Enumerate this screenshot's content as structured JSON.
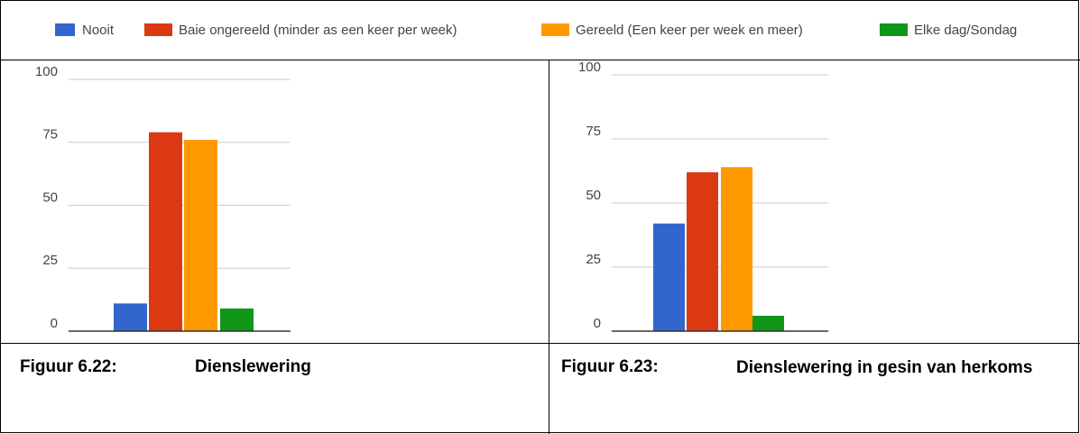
{
  "legend": {
    "items": [
      {
        "name": "Nooit",
        "color": "#3366cc"
      },
      {
        "name": "Baie ongereeld (minder as een keer per week)",
        "color": "#dc3912"
      },
      {
        "name": "Gereeld (Een keer per week en meer)",
        "color": "#ff9900"
      },
      {
        "name": "Elke dag/Sondag",
        "color": "#109618"
      }
    ]
  },
  "chart_data": [
    {
      "type": "bar",
      "values": [
        11,
        79,
        76,
        9
      ],
      "ylim": [
        0,
        100
      ],
      "yticks": [
        0,
        25,
        50,
        75,
        100
      ],
      "grid": true
    },
    {
      "type": "bar",
      "values": [
        42,
        62,
        64,
        6
      ],
      "ylim": [
        0,
        100
      ],
      "yticks": [
        0,
        25,
        50,
        75,
        100
      ],
      "grid": true
    }
  ],
  "captions": [
    {
      "label": "Figuur 6.22:",
      "text": "Dienslewering"
    },
    {
      "label": "Figuur 6.23:",
      "text": "Dienslewering in gesin van herkoms"
    }
  ]
}
